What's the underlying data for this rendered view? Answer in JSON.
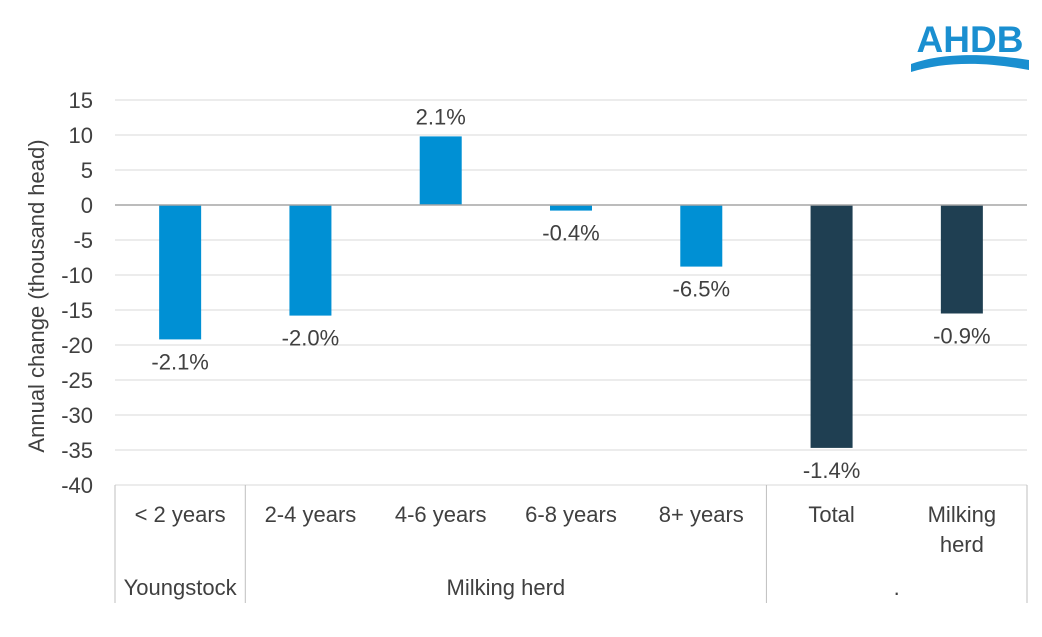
{
  "logo": {
    "text": "AHDB",
    "color": "#1a8fd0"
  },
  "chart_data": {
    "type": "bar",
    "title": "",
    "ylabel": "Annual change (thousand head)",
    "xlabel": "",
    "ylim": [
      -40,
      15
    ],
    "ytick_step": 5,
    "grid": true,
    "categories": [
      "< 2 years",
      "2-4 years",
      "4-6 years",
      "6-8 years",
      "8+ years",
      "Total",
      "Milking herd"
    ],
    "values": [
      -19.2,
      -15.8,
      9.8,
      -0.8,
      -8.8,
      -34.7,
      -15.5
    ],
    "data_labels": [
      "-2.1%",
      "-2.0%",
      "2.1%",
      "-0.4%",
      "-6.5%",
      "-1.4%",
      "-0.9%"
    ],
    "colors": [
      "#0090d4",
      "#0090d4",
      "#0090d4",
      "#0090d4",
      "#0090d4",
      "#1f3f52",
      "#1f3f52"
    ],
    "groups": [
      {
        "label": "Youngstock",
        "count": 1
      },
      {
        "label": "Milking herd",
        "count": 4
      },
      {
        "label": ".",
        "count": 2
      }
    ]
  }
}
